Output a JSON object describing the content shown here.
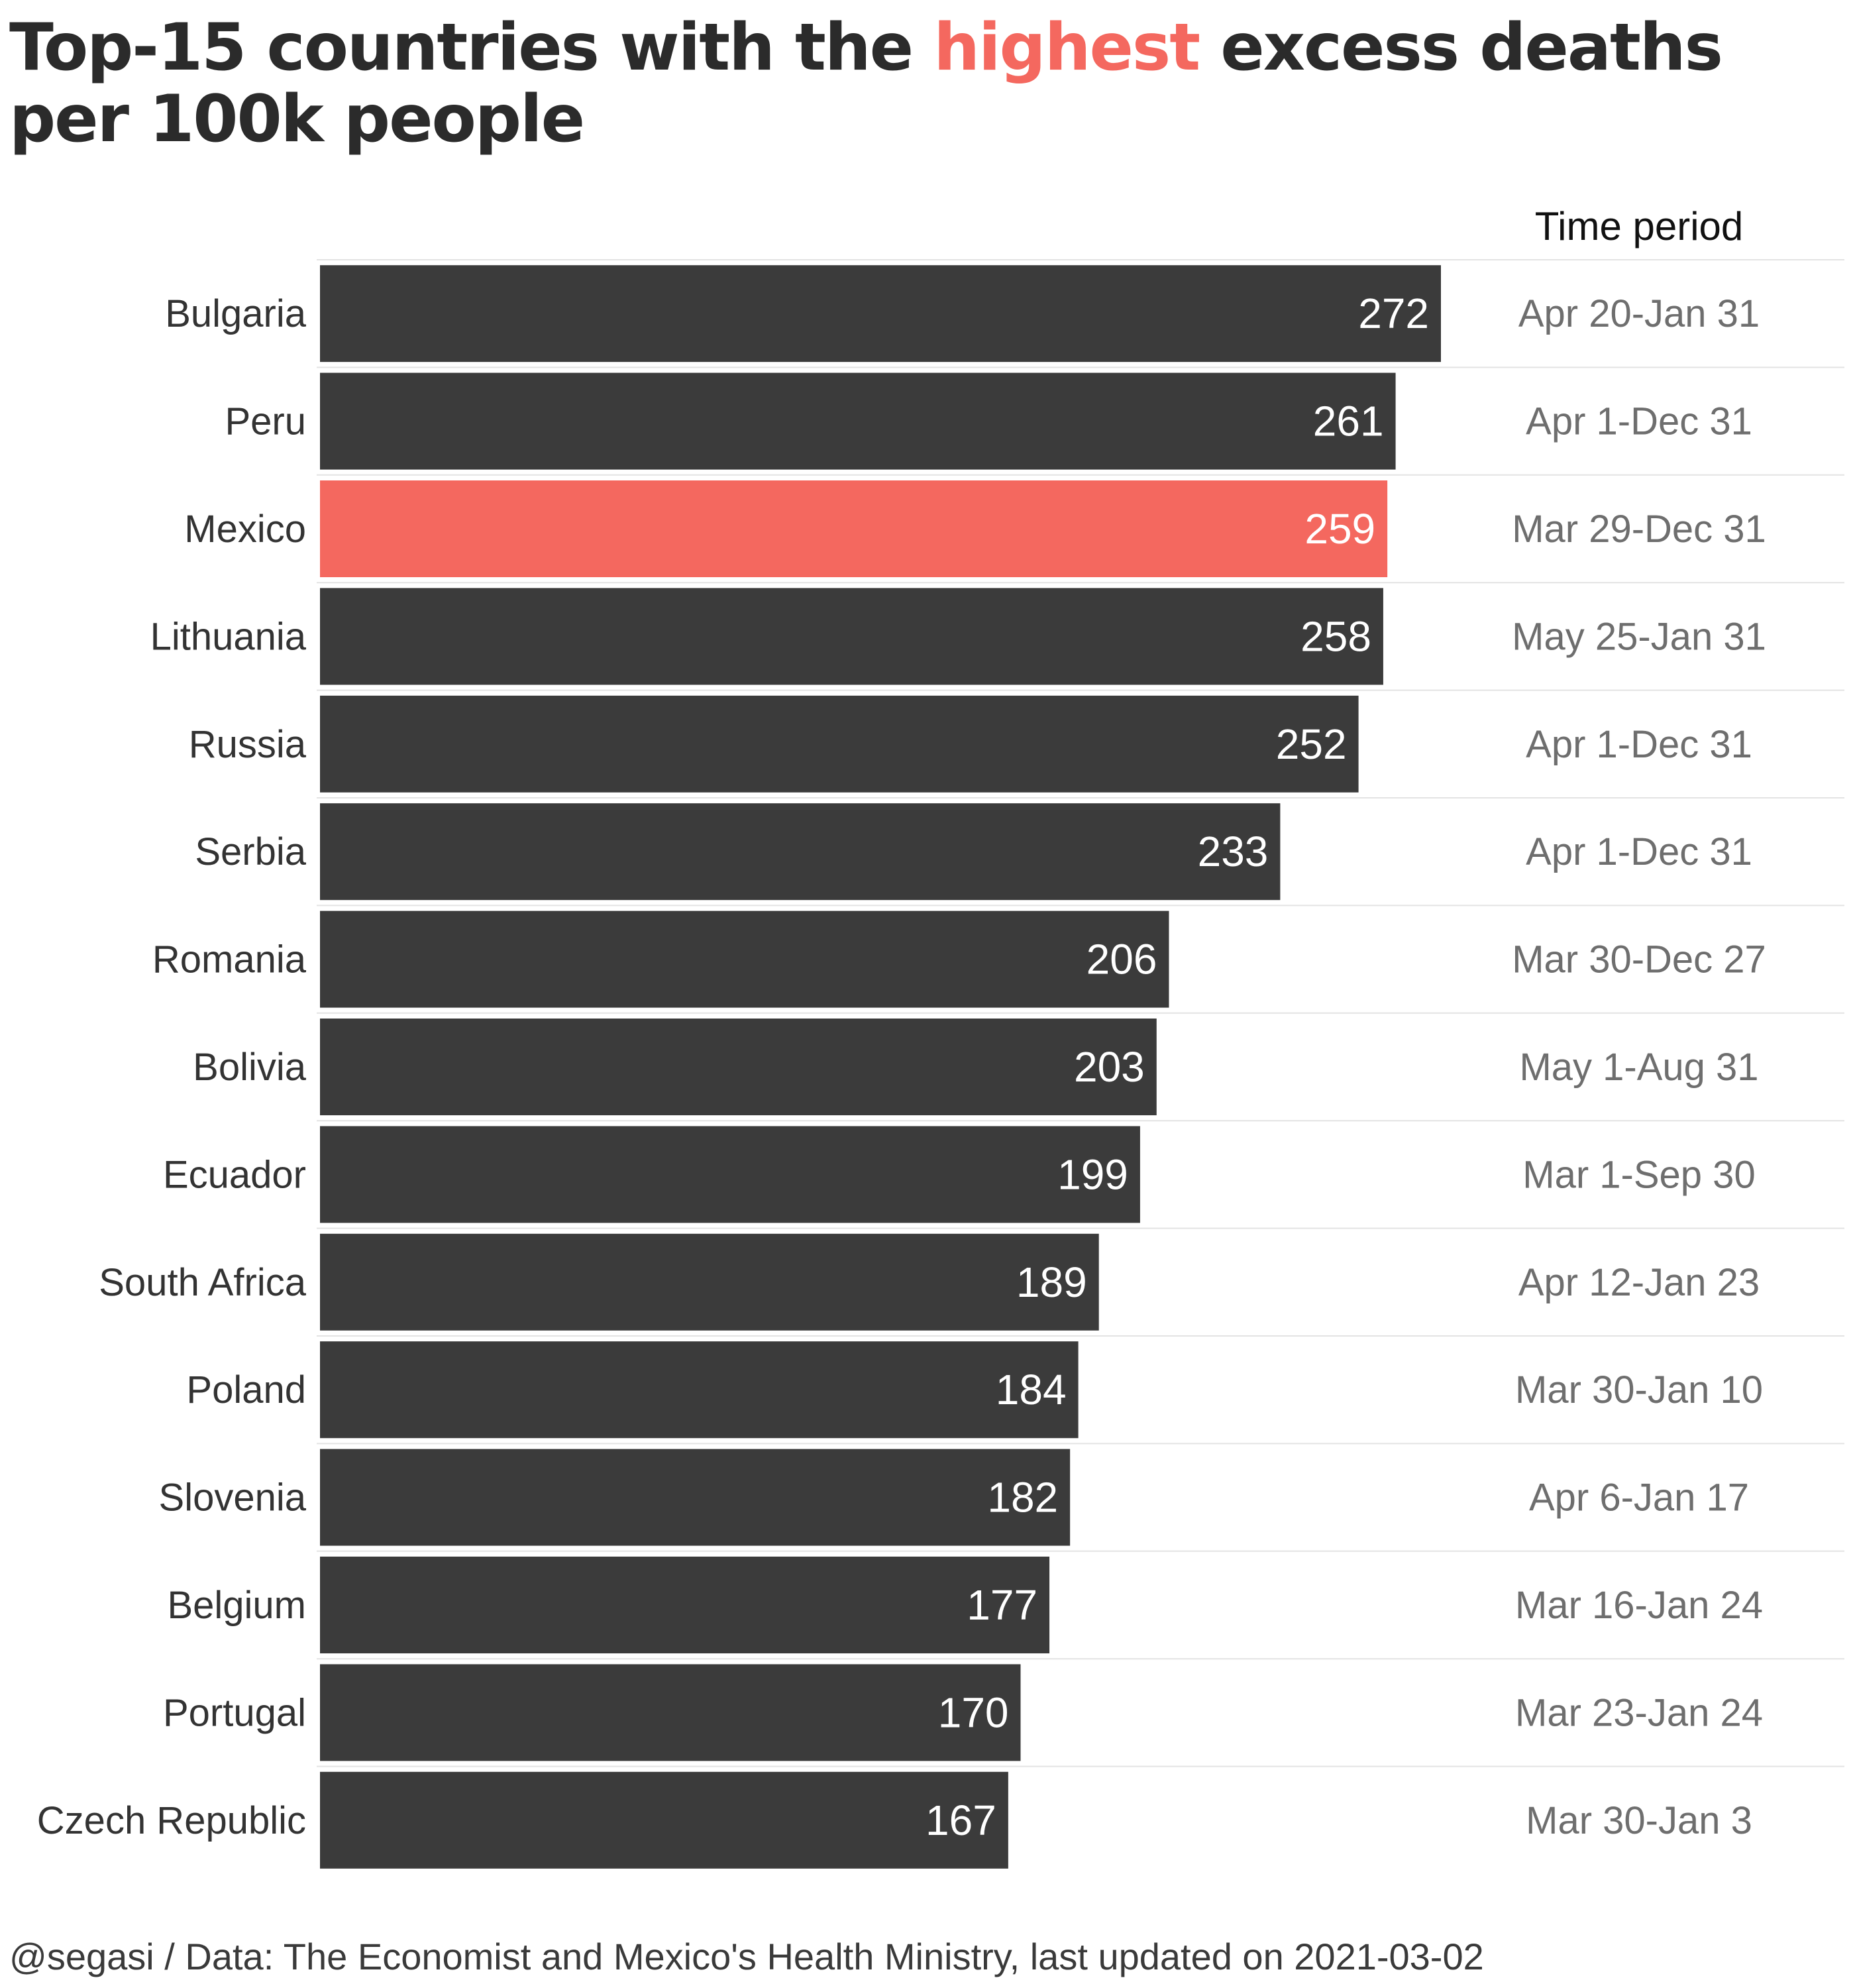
{
  "title": {
    "before": "Top-15 countries with the ",
    "highlight": "highest",
    "after": " excess deaths per 100k people"
  },
  "period_header": "Time period",
  "caption": "@segasi / Data: The Economist and Mexico's Health Ministry, last updated on 2021-03-02",
  "colors": {
    "bar": "#3b3b3b",
    "highlight": "#f4685f",
    "bar_label": "#ffffff",
    "country_label": "#333333",
    "period_text": "#6e6e6e",
    "separator": "#e3e3e3"
  },
  "chart_data": {
    "type": "bar",
    "orientation": "horizontal",
    "categories": [
      "Bulgaria",
      "Peru",
      "Mexico",
      "Lithuania",
      "Russia",
      "Serbia",
      "Romania",
      "Bolivia",
      "Ecuador",
      "South Africa",
      "Poland",
      "Slovenia",
      "Belgium",
      "Portugal",
      "Czech Republic"
    ],
    "values": [
      272,
      261,
      259,
      258,
      252,
      233,
      206,
      203,
      199,
      189,
      184,
      182,
      177,
      170,
      167
    ],
    "time_periods": [
      "Apr 20-Jan 31",
      "Apr 1-Dec 31",
      "Mar 29-Dec 31",
      "May 25-Jan 31",
      "Apr 1-Dec 31",
      "Apr 1-Dec 31",
      "Mar 30-Dec 27",
      "May 1-Aug 31",
      "Mar 1-Sep 30",
      "Apr 12-Jan 23",
      "Mar 30-Jan 10",
      "Apr 6-Jan 17",
      "Mar 16-Jan 24",
      "Mar 23-Jan 24",
      "Mar 30-Jan 3"
    ],
    "highlighted": "Mexico",
    "xlim": [
      0,
      272
    ],
    "grid": false,
    "legend": "none"
  }
}
